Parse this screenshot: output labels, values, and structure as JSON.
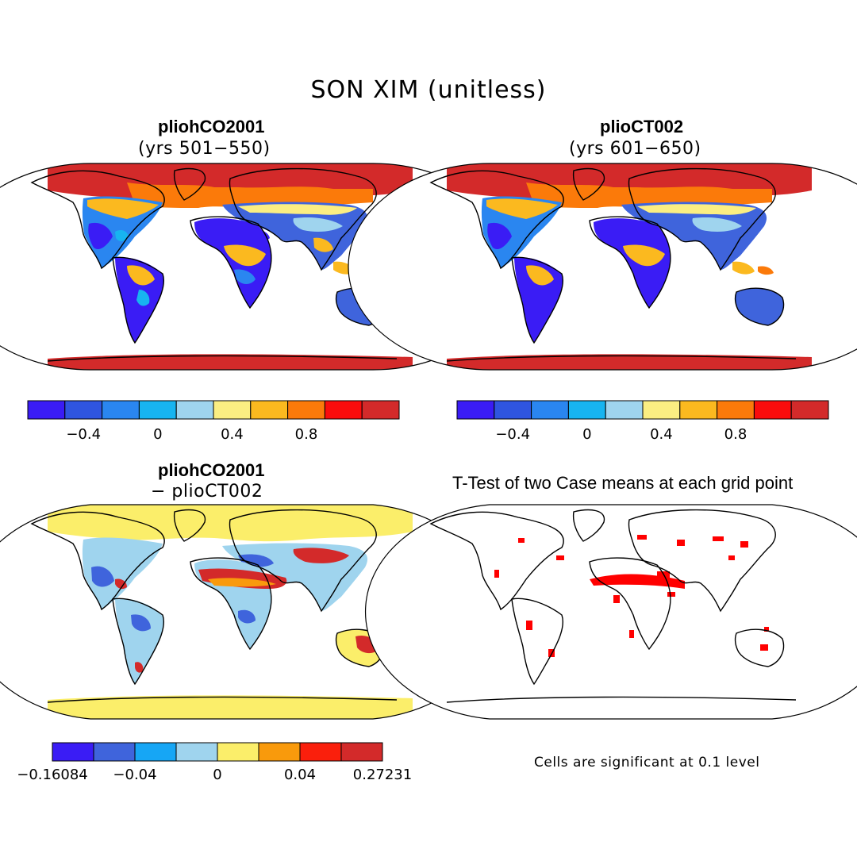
{
  "title": "SON XIM (unitless)",
  "panels": [
    {
      "id": "tl",
      "title": "pliohCO2001",
      "subtitle": "(yrs 501−550)"
    },
    {
      "id": "tr",
      "title": "plioCT002",
      "subtitle": "(yrs 601−650)"
    },
    {
      "id": "bl",
      "title": "pliohCO2001",
      "subtitle": "− plioCT002"
    },
    {
      "id": "br",
      "title": "T-Test of two Case means at each grid point",
      "note": "Cells are significant at 0.1 level"
    }
  ],
  "colorbar_abs": {
    "colors": [
      "#3a1cf5",
      "#2f55e0",
      "#2a86f0",
      "#17b4f0",
      "#9fd4ee",
      "#fbee82",
      "#fbb91f",
      "#fb7a0a",
      "#fa0c0c",
      "#d32a2a"
    ],
    "tick_labels": [
      "−0.4",
      "0",
      "0.4",
      "0.8"
    ],
    "tick_positions": [
      1.5,
      3.5,
      5.5,
      7.5
    ]
  },
  "colorbar_diff": {
    "colors": [
      "#3a1cf5",
      "#3f64dc",
      "#16a6f5",
      "#9fd4ee",
      "#fbee6a",
      "#f99a0c",
      "#fa1f0c",
      "#d32a2a"
    ],
    "tick_labels": [
      "−0.16084",
      "−0.04",
      "0",
      "0.04",
      "0.27231"
    ],
    "tick_positions": [
      0,
      2,
      4,
      6,
      8
    ]
  },
  "significance_color": "#ff0000"
}
